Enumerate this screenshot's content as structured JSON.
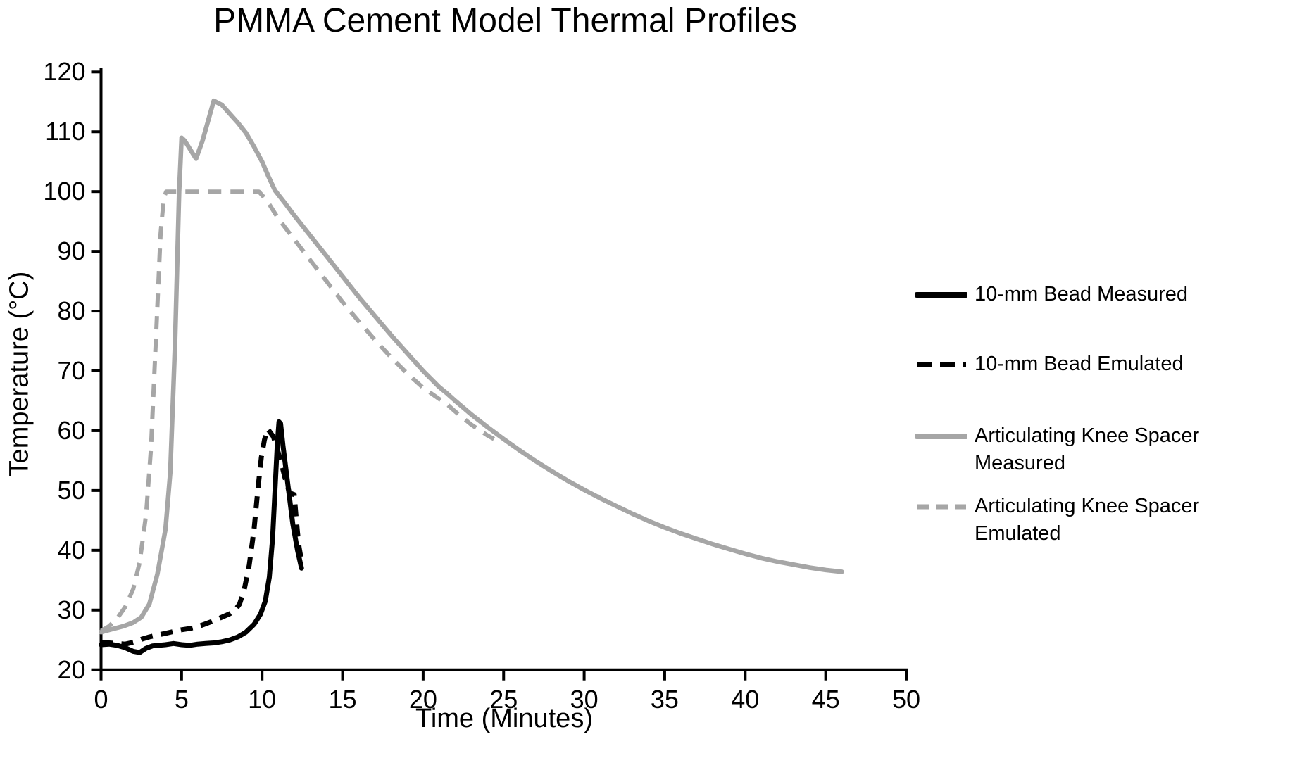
{
  "title": "PMMA Cement Model Thermal Profiles",
  "axes": {
    "x_title": "Time (Minutes)",
    "y_title": "Temperature (°C)"
  },
  "colors": {
    "black_series": "#000000",
    "gray_series": "#a6a6a6",
    "axis": "#000000",
    "background": "#ffffff"
  },
  "chart_data": {
    "type": "line",
    "title": "PMMA Cement Model Thermal Profiles",
    "xlabel": "Time (Minutes)",
    "ylabel": "Temperature (°C)",
    "xlim": [
      0,
      50
    ],
    "ylim": [
      20,
      120
    ],
    "x_ticks": [
      0,
      5,
      10,
      15,
      20,
      25,
      30,
      35,
      40,
      45,
      50
    ],
    "y_ticks": [
      20,
      30,
      40,
      50,
      60,
      70,
      80,
      90,
      100,
      110,
      120
    ],
    "grid": false,
    "legend_position": "right",
    "series": [
      {
        "name": "10-mm Bead Measured",
        "color": "#000000",
        "style": "solid",
        "points": [
          [
            0,
            24.2
          ],
          [
            0.5,
            24.3
          ],
          [
            1,
            24.1
          ],
          [
            1.5,
            23.7
          ],
          [
            2,
            23.1
          ],
          [
            2.4,
            22.9
          ],
          [
            2.8,
            23.6
          ],
          [
            3.2,
            24.0
          ],
          [
            4,
            24.2
          ],
          [
            4.5,
            24.4
          ],
          [
            5,
            24.2
          ],
          [
            5.5,
            24.1
          ],
          [
            6,
            24.3
          ],
          [
            6.5,
            24.4
          ],
          [
            7,
            24.5
          ],
          [
            7.5,
            24.7
          ],
          [
            8,
            25.0
          ],
          [
            8.5,
            25.5
          ],
          [
            9,
            26.3
          ],
          [
            9.5,
            27.6
          ],
          [
            9.9,
            29.3
          ],
          [
            10.2,
            31.5
          ],
          [
            10.45,
            35.5
          ],
          [
            10.65,
            42
          ],
          [
            10.8,
            50
          ],
          [
            10.95,
            58
          ],
          [
            11.05,
            61.5
          ],
          [
            11.15,
            61.2
          ],
          [
            11.3,
            57.5
          ],
          [
            11.6,
            51
          ],
          [
            11.9,
            44.5
          ],
          [
            12.2,
            40
          ],
          [
            12.45,
            37
          ]
        ]
      },
      {
        "name": "10-mm Bead Emulated",
        "color": "#000000",
        "style": "dashed",
        "points": [
          [
            0,
            24.6
          ],
          [
            0.5,
            24.5
          ],
          [
            1,
            24.4
          ],
          [
            1.5,
            24.3
          ],
          [
            2,
            24.6
          ],
          [
            2.5,
            25.1
          ],
          [
            3,
            25.5
          ],
          [
            3.5,
            25.8
          ],
          [
            4,
            26.1
          ],
          [
            4.5,
            26.4
          ],
          [
            5,
            26.7
          ],
          [
            5.5,
            26.9
          ],
          [
            6,
            27.2
          ],
          [
            6.5,
            27.7
          ],
          [
            7,
            28.2
          ],
          [
            7.5,
            28.8
          ],
          [
            8,
            29.4
          ],
          [
            8.3,
            29.9
          ],
          [
            8.6,
            31
          ],
          [
            8.9,
            33.5
          ],
          [
            9.2,
            37.5
          ],
          [
            9.5,
            43.5
          ],
          [
            9.75,
            50.5
          ],
          [
            9.95,
            55.5
          ],
          [
            10.15,
            58.5
          ],
          [
            10.35,
            60.3
          ],
          [
            10.7,
            59
          ],
          [
            11.1,
            55.5
          ],
          [
            11.45,
            51.8
          ],
          [
            11.7,
            49.6
          ],
          [
            12.0,
            49.3
          ],
          [
            12.1,
            46
          ],
          [
            12.2,
            43
          ],
          [
            12.3,
            40.5
          ],
          [
            12.45,
            38.2
          ]
        ]
      },
      {
        "name": "Articulating Knee Spacer Measured",
        "color": "#a6a6a6",
        "style": "solid",
        "points": [
          [
            0,
            26.3
          ],
          [
            0.7,
            26.8
          ],
          [
            1.4,
            27.3
          ],
          [
            2,
            27.9
          ],
          [
            2.5,
            28.8
          ],
          [
            3,
            31
          ],
          [
            3.5,
            36
          ],
          [
            4,
            43.5
          ],
          [
            4.3,
            53
          ],
          [
            4.6,
            75
          ],
          [
            4.85,
            100
          ],
          [
            5.0,
            109
          ],
          [
            5.2,
            108.5
          ],
          [
            5.9,
            105.5
          ],
          [
            6.3,
            108.5
          ],
          [
            7.0,
            115.2
          ],
          [
            7.5,
            114.5
          ],
          [
            8,
            113
          ],
          [
            8.5,
            111.5
          ],
          [
            9,
            109.8
          ],
          [
            9.5,
            107.5
          ],
          [
            10,
            105
          ],
          [
            10.4,
            102.5
          ],
          [
            10.8,
            100.2
          ],
          [
            11.5,
            97.8
          ],
          [
            12,
            96
          ],
          [
            13,
            92.6
          ],
          [
            14,
            89.2
          ],
          [
            15,
            85.8
          ],
          [
            16,
            82.4
          ],
          [
            17,
            79.2
          ],
          [
            18,
            76
          ],
          [
            19,
            73
          ],
          [
            20,
            70
          ],
          [
            21,
            67.3
          ],
          [
            21.5,
            66.2
          ],
          [
            22,
            65
          ],
          [
            23,
            62.7
          ],
          [
            24,
            60.6
          ],
          [
            25,
            58.6
          ],
          [
            26,
            56.7
          ],
          [
            27,
            54.9
          ],
          [
            28,
            53.2
          ],
          [
            29,
            51.6
          ],
          [
            30,
            50.1
          ],
          [
            31,
            48.7
          ],
          [
            32,
            47.4
          ],
          [
            33,
            46.1
          ],
          [
            34,
            44.9
          ],
          [
            35,
            43.8
          ],
          [
            36,
            42.8
          ],
          [
            37,
            41.9
          ],
          [
            38,
            41
          ],
          [
            39,
            40.2
          ],
          [
            40,
            39.4
          ],
          [
            41,
            38.7
          ],
          [
            42,
            38.1
          ],
          [
            43,
            37.6
          ],
          [
            44,
            37.1
          ],
          [
            45,
            36.7
          ],
          [
            46,
            36.4
          ]
        ]
      },
      {
        "name": "Articulating Knee Spacer Emulated",
        "color": "#a6a6a6",
        "style": "dashed",
        "points": [
          [
            0,
            26.5
          ],
          [
            0.5,
            27.3
          ],
          [
            1,
            28.6
          ],
          [
            1.5,
            30.5
          ],
          [
            2,
            33.5
          ],
          [
            2.4,
            38
          ],
          [
            2.8,
            46
          ],
          [
            3.1,
            57
          ],
          [
            3.4,
            75
          ],
          [
            3.7,
            93
          ],
          [
            3.9,
            99
          ],
          [
            4.05,
            100
          ],
          [
            9.8,
            100
          ],
          [
            10.3,
            98.5
          ],
          [
            11,
            95.5
          ],
          [
            12,
            92
          ],
          [
            13,
            88.5
          ],
          [
            14,
            85
          ],
          [
            15,
            81.5
          ],
          [
            16,
            78.3
          ],
          [
            17,
            75.2
          ],
          [
            18,
            72.3
          ],
          [
            19,
            69.6
          ],
          [
            20,
            67.2
          ],
          [
            21,
            65.3
          ],
          [
            21.5,
            64.4
          ],
          [
            22,
            63.2
          ],
          [
            23,
            61
          ],
          [
            24,
            59.2
          ],
          [
            24.4,
            58.6
          ]
        ]
      }
    ]
  },
  "legend": {
    "entries": [
      {
        "series": 0,
        "lines": [
          "10-mm Bead Measured"
        ]
      },
      {
        "series": 1,
        "lines": [
          "10-mm Bead Emulated"
        ]
      },
      {
        "series": 2,
        "lines": [
          "Articulating Knee Spacer",
          "Measured"
        ]
      },
      {
        "series": 3,
        "lines": [
          "Articulating Knee Spacer",
          "Emulated"
        ]
      }
    ]
  }
}
